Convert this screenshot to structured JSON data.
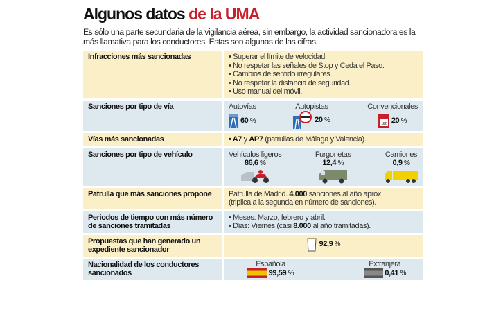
{
  "title": {
    "main": "Algunos datos",
    "accent": "de la UMA"
  },
  "subtitle": "Es sólo una parte secundaria de la vigilancia aérea, sin embargo, la actividad sancionadora es la más llamativa para los conductores. Estas son algunas de las cifras.",
  "colors": {
    "accent": "#c8202a",
    "row_yellow": "#fbefc8",
    "row_blue": "#dde9ef"
  },
  "rows": {
    "infracciones": {
      "label": "Infracciones más sancionadas",
      "items": [
        "• Superar el límite de velocidad.",
        "• No respetar las señales de Stop y Ceda el Paso.",
        "• Cambios de sentido irregulares.",
        "• No respetar la distancia de seguridad.",
        "• Uso manual del móvil."
      ]
    },
    "via": {
      "label": "Sanciones por tipo de vía",
      "items": [
        {
          "name": "Autovías",
          "value": "60",
          "icon": "motorway-sign-icon"
        },
        {
          "name": "Autopistas",
          "value": "20",
          "icon": "toll-motorway-sign-icon"
        },
        {
          "name": "Convencionales",
          "value": "20",
          "icon": "road-km-marker-icon"
        }
      ]
    },
    "vias_mas": {
      "label": "Vías más sancionadas",
      "bullet": "• ",
      "a7": "A7",
      "y": " y ",
      "ap7": "AP7",
      "rest": " (patrullas de Málaga y Valencia)."
    },
    "vehiculo": {
      "label": "Sanciones por tipo de vehículo",
      "items": [
        {
          "name": "Vehículos ligeros",
          "value": "86,6",
          "icon": "car-motorbike-icon"
        },
        {
          "name": "Furgonetas",
          "value": "12,4",
          "icon": "van-icon"
        },
        {
          "name": "Camiones",
          "value": "0,9",
          "icon": "truck-icon"
        }
      ]
    },
    "patrulla": {
      "label": "Patrulla que más sanciones propone",
      "pre": "Patrulla de Madrid. ",
      "num": "4.000",
      "post": " sanciones al año aprox.",
      "line2": "(triplica a la segunda en número de sanciones)."
    },
    "periodos": {
      "label": "Periodos de tiempo con más número de sanciones tramitadas",
      "meses": "• Meses: Marzo, febrero y abril.",
      "dias_pre": "• Días: Viernes (casi ",
      "dias_num": "8.000",
      "dias_post": " al año tramitadas)."
    },
    "propuestas": {
      "label": "Propuestas que han generado un expediente sancionador",
      "value": "92,9",
      "icon": "document-icon"
    },
    "nacionalidad": {
      "label": "Nacionalidad de los conductores sancionados",
      "items": [
        {
          "name": "Española",
          "value": "99,59",
          "icon": "spain-flag-icon"
        },
        {
          "name": "Extranjera",
          "value": "0,41",
          "icon": "foreign-flag-icon"
        }
      ]
    }
  },
  "unit": " %"
}
